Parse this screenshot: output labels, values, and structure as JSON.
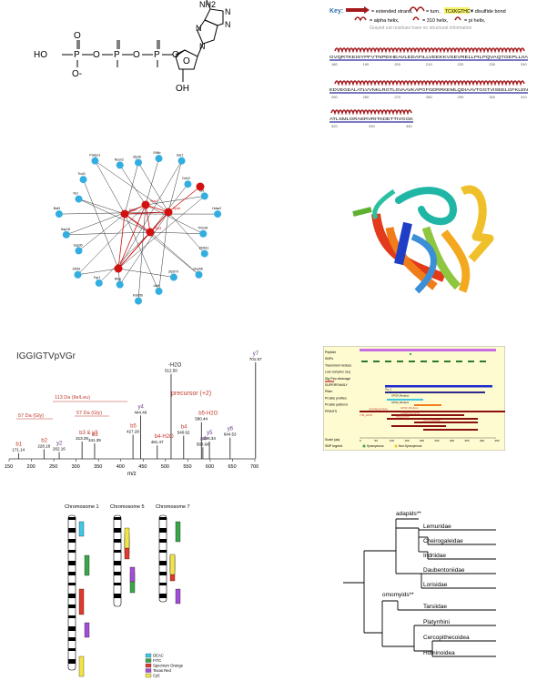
{
  "atp": {
    "atoms": {
      "nh2": "NH2",
      "n1": "N",
      "n2": "N",
      "n3": "N",
      "n4": "N",
      "o_ring": "O",
      "oh": "OH",
      "ho": "HO",
      "p1": "P",
      "p2": "P",
      "p3": "P",
      "o_link1": "O",
      "o_link2": "O",
      "o_link3": "O",
      "o_dbl": "O",
      "o_minus": "O-"
    }
  },
  "secondary_structure": {
    "key_title": "Key:",
    "key_strand": "= extended strand,",
    "key_turn": "= turn,",
    "key_disulfide_seq": "TCXKGTHCY",
    "key_disulfide": "= disulfide bond",
    "key_alpha": "= alpha helix,",
    "key_310": "= 310 helix,",
    "key_pi": "= pi helix,",
    "key_grayed": "Grayed out residues have no structural information",
    "rows": [
      {
        "sequence": "GVQRTKEISYPFVTNPEIHEAVLEDAFILLVEEKKVSEVRELLPILPQVAQTGEPLLIIA",
        "ticks": [
          "180",
          "190",
          "200",
          "210",
          "220",
          "230",
          "240"
        ]
      },
      {
        "sequence": "EDVEGEALATLVVNKLRGTLSVAAVKAPGFGDRRKEMLQDIAAVTGGTVISEELGFKLEN",
        "ticks": [
          "250",
          "260",
          "270",
          "280",
          "290",
          "300",
          "310"
        ]
      },
      {
        "sequence": "ATLSMLGRAERVRITKDETTIVGGK",
        "ticks": [
          "320",
          "330",
          "340"
        ]
      }
    ]
  },
  "network": {
    "red_labels": [
      "RS27",
      "Rps2",
      "Rps6",
      "Rpl3"
    ],
    "blue_labels": [
      "Zfp36",
      "Eif4b",
      "Gar1",
      "Ddx3",
      "Gpi",
      "Hdac2",
      "Trim28",
      "Zbtb11",
      "Nop56",
      "Zfp579",
      "Ubtf",
      "Kdm5b",
      "Rbpj",
      "Top1",
      "Sf3b1",
      "Sap30",
      "Sap18",
      "Bat3",
      "Ncl",
      "Tcof1",
      "Pabpc1",
      "Nsun2"
    ]
  },
  "spectrum": {
    "title": "IGGIGTVpVGr",
    "peaks": [
      "701.57",
      "512.50",
      "444.46",
      "427.28",
      "580.44",
      "481.47",
      "598.34",
      "540.62",
      "644.53",
      "583.64",
      "341.39",
      "313.29",
      "228.18",
      "262.16",
      "171.14"
    ],
    "ion_labels": [
      "y7",
      "-H2O",
      "y4",
      "b5",
      "b5-H2O",
      "b4-H2O",
      "y5",
      "b4",
      "y6",
      "a4",
      "b3",
      "b3 & y3",
      "b2",
      "y2",
      "b1"
    ],
    "annotations": [
      "precursor (+2)",
      "113 Da (Ile/Leu)",
      "57 Da (Gly)",
      "57 Da (Gly)"
    ],
    "x_ticks": [
      "150",
      "200",
      "250",
      "300",
      "350",
      "400",
      "450",
      "500",
      "550",
      "600",
      "650",
      "700"
    ],
    "x_label": "m/z"
  },
  "domain_map": {
    "rows": [
      "Peptide",
      "SNPs",
      "Transmem helices",
      "Low complex seq",
      "Sig Pep cleavage",
      "SUPERFAMILY",
      "Pfam",
      "Prosite profiles",
      "Prosite patterns",
      "PRINTS"
    ],
    "pfam_labels": [
      "7tm_1",
      "GPCR_Rhodpsn"
    ],
    "profile_labels": [
      "GPCR_Rhodpsn",
      "GPCR_Rhodpsn"
    ],
    "pattern_labels": [
      "GPCR_Rhodpsn",
      "7TM_GPCR"
    ],
    "prints_labels": [
      "GPCRRHODOPSN",
      "GPRBFRNSTEPPR",
      "RHODOPSIN",
      "GPCR_Neuropep"
    ],
    "scale_label": "Scale (aa)",
    "scale_ticks": [
      "0",
      "50",
      "100",
      "150",
      "200",
      "250",
      "300",
      "350",
      "400",
      "450"
    ],
    "snp_legend_title": "SNP legend",
    "snp_legend_items": [
      "Synonymous",
      "Non-Synonymous"
    ]
  },
  "karyotype": {
    "chromosomes": [
      "Chromosome 1",
      "Chromosome 5",
      "Chromosome 7"
    ],
    "legend": [
      {
        "label": "DEAC",
        "color": "#3ec8e6"
      },
      {
        "label": "FITC",
        "color": "#3aa64a"
      },
      {
        "label": "Spectrum Orange",
        "color": "#e03a2b"
      },
      {
        "label": "Texas Red",
        "color": "#a24dd6"
      },
      {
        "label": "Cy5",
        "color": "#f1e545"
      }
    ]
  },
  "tree": {
    "labels": [
      "adapids**",
      "Lemuridae",
      "Cheirogaleidae",
      "Indriidae",
      "Daubentoniidae",
      "Lorisidae",
      "omomyids**",
      "Tarsiidae",
      "Platyrrhini",
      "Cercopithecoidea",
      "Hominoidea"
    ]
  },
  "colors": {
    "helix_red": "#a3191d",
    "node_red": "#d11010",
    "node_blue": "#33aee0",
    "peak_red": "#c0392b",
    "peak_purple": "#6a3c8a",
    "domain_bg": "#fffbd0",
    "tree_line": "#000000"
  }
}
